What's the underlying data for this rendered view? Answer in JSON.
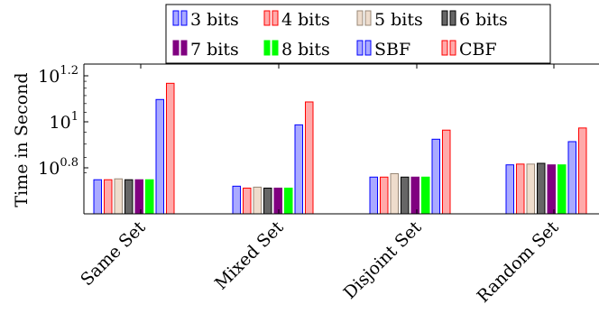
{
  "chart_data": {
    "type": "bar",
    "ylabel": "Time in Second",
    "yscale": "log10",
    "ylim": [
      5.0,
      16.0
    ],
    "yticks": [
      {
        "value": 6.3096,
        "base": "10",
        "exp": "0.8"
      },
      {
        "value": 10.0,
        "base": "10",
        "exp": "1"
      },
      {
        "value": 15.8489,
        "base": "10",
        "exp": "1.2"
      }
    ],
    "categories": [
      "Same Set",
      "Mixed Set",
      "Disjoint Set",
      "Random Set"
    ],
    "legend_position": "top",
    "series": [
      {
        "name": "3 bits",
        "fill": "#aaaaff",
        "stroke": "#0000ff",
        "values": [
          5.6,
          5.25,
          5.75,
          6.5
        ]
      },
      {
        "name": "4 bits",
        "fill": "#ffaaaa",
        "stroke": "#ff0000",
        "values": [
          5.6,
          5.15,
          5.75,
          6.55
        ]
      },
      {
        "name": "5 bits",
        "fill": "#eedccc",
        "stroke": "#998877",
        "values": [
          5.65,
          5.2,
          5.95,
          6.55
        ]
      },
      {
        "name": "6 bits",
        "fill": "#666666",
        "stroke": "#000000",
        "values": [
          5.6,
          5.15,
          5.75,
          6.6
        ]
      },
      {
        "name": "7 bits",
        "fill": "#800080",
        "stroke": "#800080",
        "values": [
          5.6,
          5.15,
          5.75,
          6.5
        ]
      },
      {
        "name": "8 bits",
        "fill": "#00ff00",
        "stroke": "#00ff00",
        "values": [
          5.6,
          5.15,
          5.75,
          6.5
        ]
      },
      {
        "name": "SBF",
        "fill": "#aaaaff",
        "stroke": "#0000ff",
        "values": [
          12.5,
          9.7,
          8.4,
          8.2
        ]
      },
      {
        "name": "CBF",
        "fill": "#ffaaaa",
        "stroke": "#ff0000",
        "values": [
          14.7,
          12.2,
          9.2,
          9.4
        ]
      }
    ]
  }
}
